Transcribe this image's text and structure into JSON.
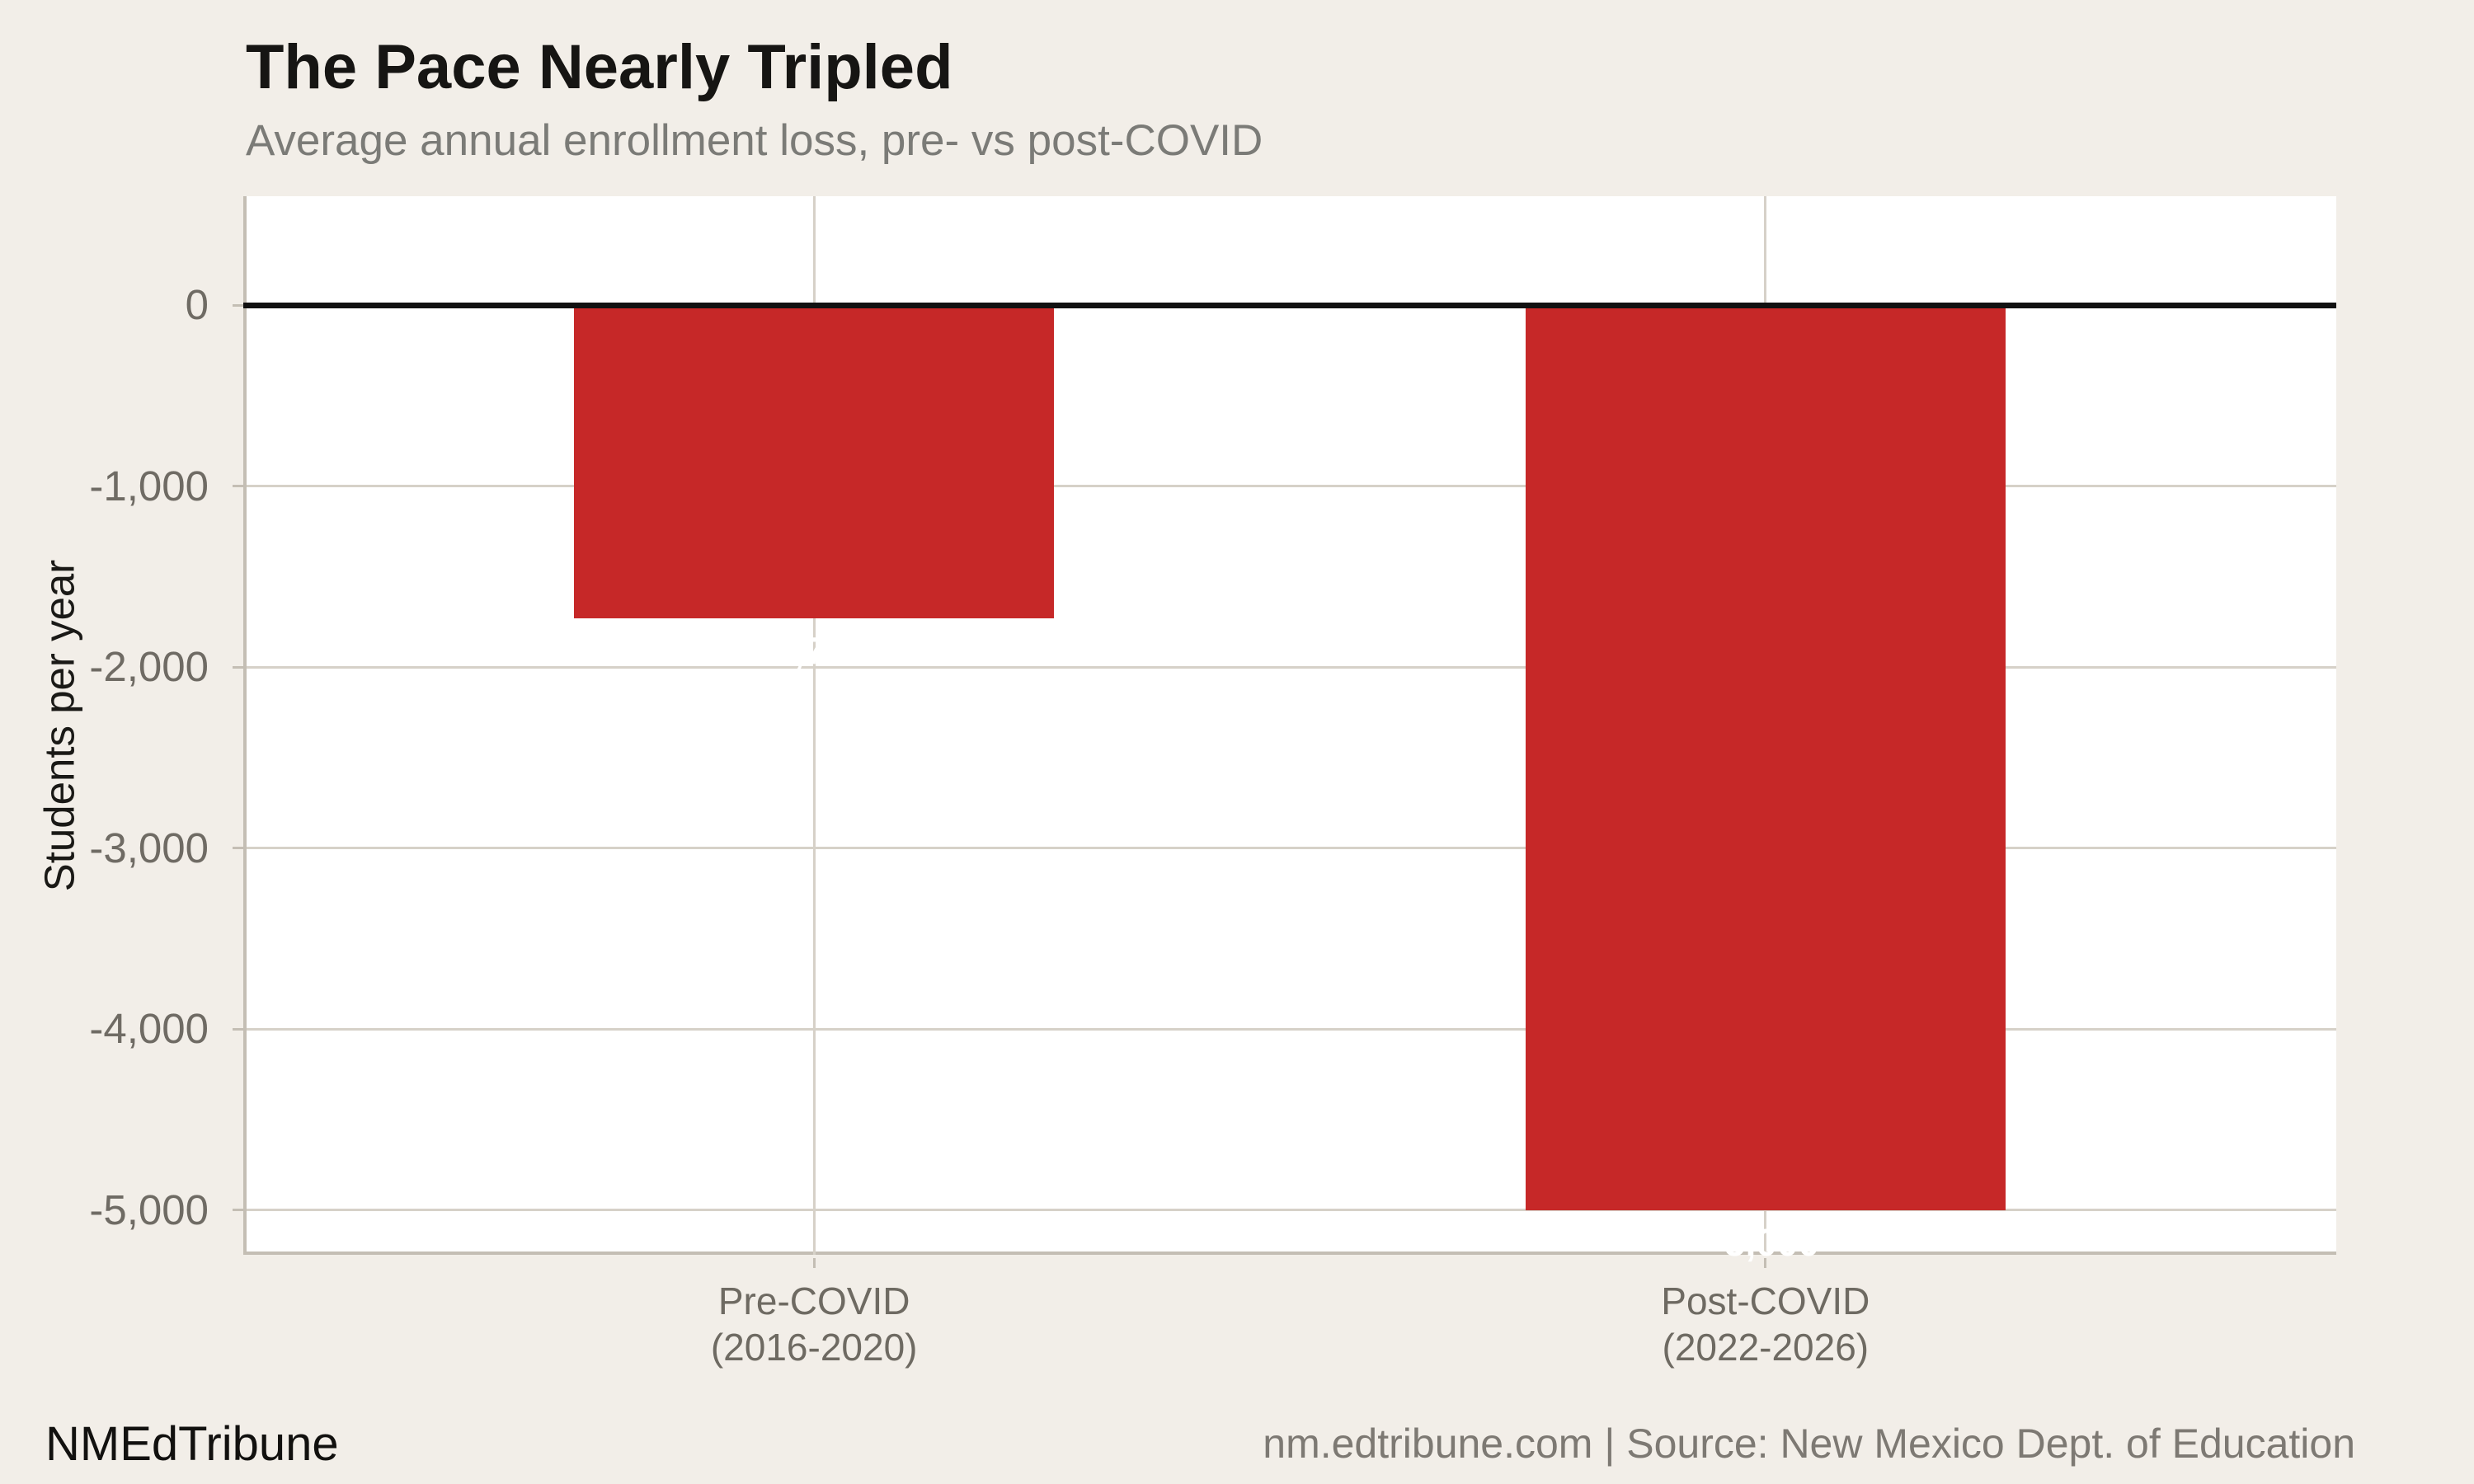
{
  "chart_data": {
    "type": "bar",
    "title": "The Pace Nearly Tripled",
    "subtitle": "Average annual enrollment loss, pre- vs post-COVID",
    "ylabel": "Students per year",
    "xlabel": "",
    "categories": [
      "Pre-COVID\n(2016-2020)",
      "Post-COVID\n(2022-2026)"
    ],
    "values": [
      -1730,
      -5000
    ],
    "bar_value_labels": [
      "-1,730",
      "-5,000"
    ],
    "y_ticks": [
      {
        "value": 0,
        "label": "0"
      },
      {
        "value": -1000,
        "label": "-1,000"
      },
      {
        "value": -2000,
        "label": "-2,000"
      },
      {
        "value": -3000,
        "label": "-3,000"
      },
      {
        "value": -4000,
        "label": "-4,000"
      },
      {
        "value": -5000,
        "label": "-5,000"
      }
    ],
    "ylim": [
      -5250,
      600
    ],
    "grid": true,
    "legend_position": "none",
    "zero_baseline": true
  },
  "colors": {
    "background": "#f2eee8",
    "plot_background": "#ffffff",
    "bar": "#c62828",
    "bar_value_label": "#ffffff",
    "gridline": "#d6d1c8",
    "spine": "#c4beb4",
    "zero_line": "#111111"
  },
  "footer": {
    "brand": "NMEdTribune",
    "source": "nm.edtribune.com | Source: New Mexico Dept. of Education"
  }
}
